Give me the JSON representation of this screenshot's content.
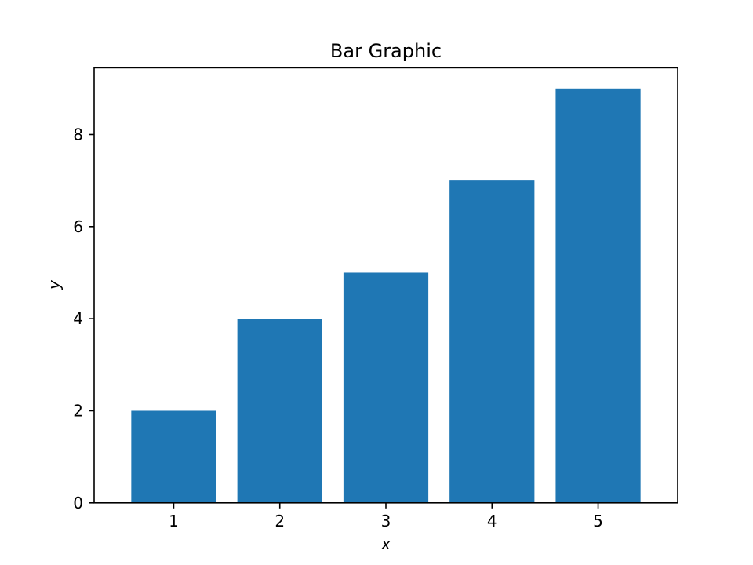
{
  "chart_data": {
    "type": "bar",
    "title": "Bar Graphic",
    "xlabel": "x",
    "ylabel": "y",
    "categories": [
      "1",
      "2",
      "3",
      "4",
      "5"
    ],
    "values": [
      2,
      4,
      5,
      7,
      9
    ],
    "xlim": [
      0.25,
      5.75
    ],
    "ylim": [
      0,
      9.45
    ],
    "yticks": [
      0,
      2,
      4,
      6,
      8
    ],
    "ytick_labels": [
      "0",
      "2",
      "4",
      "6",
      "8"
    ],
    "bar_color": "#1f77b4",
    "grid": false,
    "legend": "none"
  }
}
